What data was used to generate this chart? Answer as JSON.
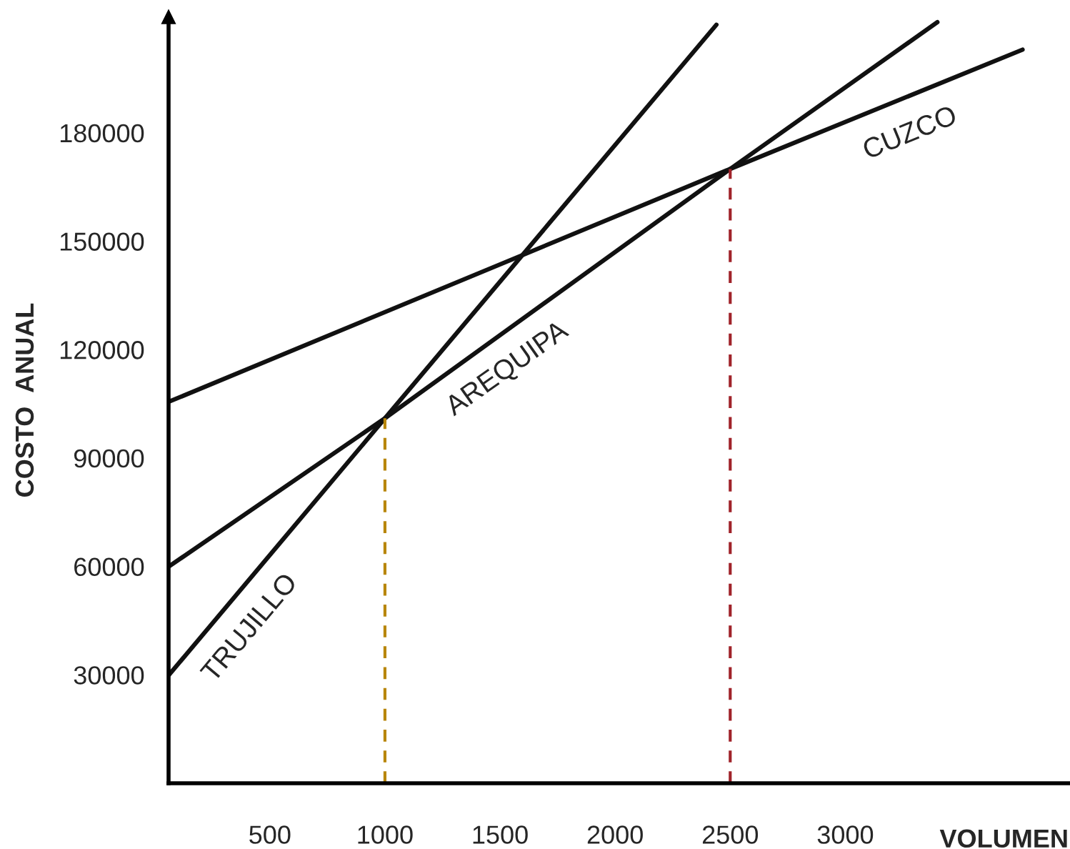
{
  "chart_data": {
    "type": "line",
    "xlabel": "VOLUMEN",
    "ylabel": "COSTO  ANUAL",
    "xlim": [
      60,
      3970
    ],
    "ylim": [
      0,
      212000
    ],
    "xticks": [
      500,
      1000,
      1500,
      2000,
      2500,
      3000
    ],
    "yticks": [
      30000,
      60000,
      90000,
      120000,
      150000,
      180000
    ],
    "grid": false,
    "legend": false,
    "marker": "none",
    "series": [
      {
        "name": "TRUJILLO",
        "color": "#111111",
        "x": [
          62,
          1000,
          2440
        ],
        "values": [
          30000,
          101000,
          209900
        ]
      },
      {
        "name": "AREQUIPA",
        "color": "#111111",
        "x": [
          62,
          1000,
          2500,
          3400
        ],
        "values": [
          60000,
          101000,
          170000,
          210600
        ]
      },
      {
        "name": "CUZCO",
        "color": "#111111",
        "x": [
          62,
          2500,
          3770
        ],
        "values": [
          105600,
          170000,
          203000
        ]
      },
      {
        "color": "#b8860b",
        "line_style": "dashed",
        "x": [
          1000,
          1000
        ],
        "values": [
          0,
          101000
        ]
      },
      {
        "color": "#a0232a",
        "line_style": "dashed",
        "x": [
          2500,
          2500
        ],
        "values": [
          0,
          170000
        ]
      }
    ]
  }
}
